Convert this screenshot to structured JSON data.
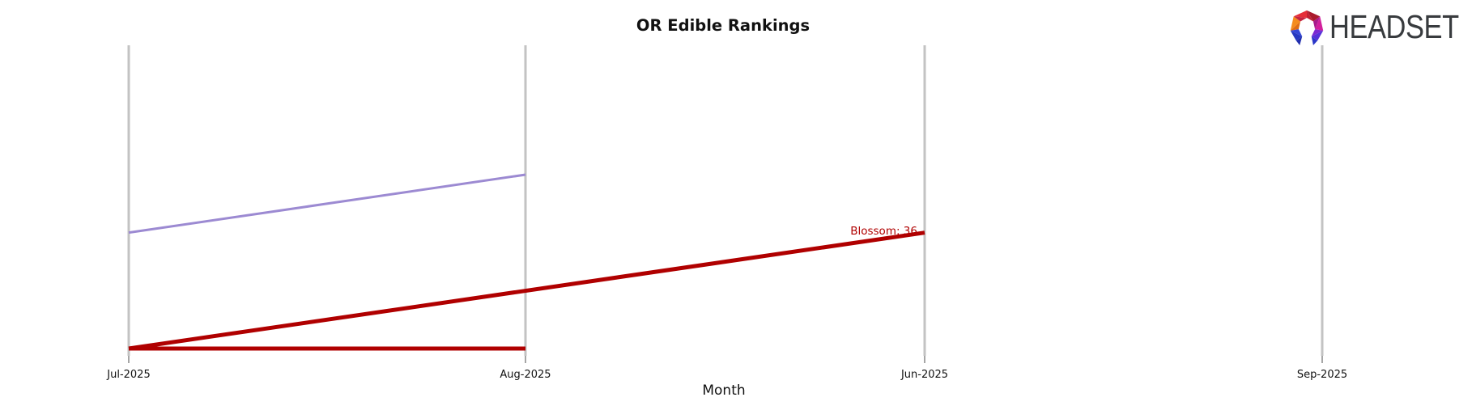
{
  "logo": {
    "text": "HEADSET",
    "text_color": "#383b3e",
    "icon": "headset-faceted-arch-icon",
    "icon_colors": [
      "#f58c1e",
      "#e06c12",
      "#e62e39",
      "#c42440",
      "#aa1a2d",
      "#c22033",
      "#d1209c",
      "#a81b8a",
      "#7b2ad2",
      "#5632d8",
      "#2b37c8",
      "#3547d6",
      "#2739c0",
      "#222fae"
    ]
  },
  "chart_data": {
    "type": "line",
    "title": "OR Edible Rankings",
    "xlabel": "Month",
    "ylabel": "",
    "categories": [
      "Jul-2025",
      "Aug-2025",
      "Jun-2025",
      "Sep-2025"
    ],
    "y_axis": {
      "ticks_visible": false,
      "meaning": "rank (lower value plotted higher)",
      "inverted": true
    },
    "grid": {
      "vertical": true,
      "horizontal": false,
      "color": "#c3c3c3"
    },
    "legend": "none",
    "annotations": [
      {
        "text": "Blossom: 36",
        "color": "#b00000",
        "position": "end of Blossom line at Jun-2025"
      }
    ],
    "series": [
      {
        "name": "unlabeled-purple-series",
        "color": "#9c8ad2",
        "line_width": 3,
        "points": [
          {
            "month": "Jul-2025",
            "value": 36
          },
          {
            "month": "Aug-2025",
            "value": 35
          }
        ]
      },
      {
        "name": "Blossom",
        "color": "#b00000",
        "line_width": 5,
        "end_label": "Blossom: 36",
        "points": [
          {
            "month": "Jul-2025",
            "value": 38
          },
          {
            "month": "Jun-2025",
            "value": 36
          }
        ]
      },
      {
        "name": "unlabeled-red-flat-series",
        "color": "#b00000",
        "line_width": 5,
        "points": [
          {
            "month": "Jul-2025",
            "value": 38
          },
          {
            "month": "Aug-2025",
            "value": 38
          }
        ]
      }
    ]
  }
}
